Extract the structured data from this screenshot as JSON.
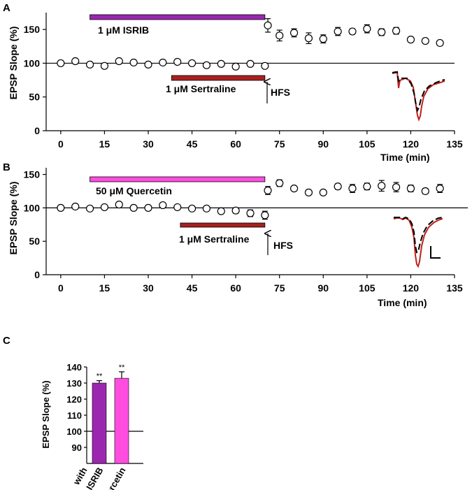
{
  "colors": {
    "isrib": "#9b27b0",
    "quercetin": "#ff4de0",
    "sertraline": "#a8201f",
    "trace_red": "#c0201c",
    "trace_black": "#000000"
  },
  "panels": {
    "A": {
      "letter": "A",
      "bar1_label": "1 μM ISRIB",
      "bar2_label": "1 μM Sertraline",
      "hfs_label": "HFS"
    },
    "B": {
      "letter": "B",
      "bar1_label": "50 μM Quercetin",
      "bar2_label": "1 μM Sertraline",
      "hfs_label": "HFS"
    },
    "C": {
      "letter": "C"
    }
  },
  "chart_data": [
    {
      "type": "scatter",
      "panel": "A",
      "ylabel": "EPSP Slope (%)",
      "xlabel": "Time (min)",
      "xlim": [
        -5,
        135
      ],
      "ylim": [
        0,
        175
      ],
      "xticks": [
        0,
        15,
        30,
        45,
        60,
        75,
        90,
        105,
        120,
        135
      ],
      "yticks": [
        0,
        50,
        100,
        150
      ],
      "baseline": 100,
      "drug_bar_1": {
        "label": "1 μM ISRIB",
        "start": 10,
        "end": 70
      },
      "drug_bar_2": {
        "label": "1 μM Sertraline",
        "start": 38,
        "end": 70
      },
      "hfs_time": 70,
      "x": [
        0,
        5,
        10,
        15,
        20,
        25,
        30,
        35,
        40,
        45,
        50,
        55,
        60,
        65,
        70,
        71,
        75,
        80,
        85,
        90,
        95,
        100,
        105,
        110,
        115,
        120,
        125,
        130
      ],
      "y": [
        100,
        103,
        98,
        96,
        103,
        101,
        98,
        101,
        102,
        100,
        97,
        99,
        95,
        99,
        96,
        156,
        141,
        145,
        137,
        136,
        147,
        147,
        151,
        146,
        148,
        135,
        133,
        130
      ],
      "err": [
        2,
        2,
        2,
        3,
        2,
        2,
        2,
        2,
        2,
        2,
        2,
        2,
        2,
        2,
        3,
        10,
        8,
        6,
        8,
        6,
        6,
        4,
        6,
        5,
        5,
        3,
        3,
        3
      ]
    },
    {
      "type": "scatter",
      "panel": "B",
      "ylabel": "EPSP Slope (%)",
      "xlabel": "Time (min)",
      "xlim": [
        -5,
        135
      ],
      "ylim": [
        0,
        160
      ],
      "xticks": [
        0,
        15,
        30,
        45,
        60,
        75,
        90,
        105,
        120,
        135
      ],
      "yticks": [
        0,
        50,
        100,
        150
      ],
      "baseline": 100,
      "drug_bar_1": {
        "label": "50 μM Quercetin",
        "start": 10,
        "end": 70
      },
      "drug_bar_2": {
        "label": "1 μM Sertraline",
        "start": 41,
        "end": 70
      },
      "hfs_time": 70,
      "x": [
        0,
        5,
        10,
        15,
        20,
        25,
        30,
        35,
        40,
        45,
        50,
        55,
        60,
        65,
        70,
        71,
        75,
        80,
        85,
        90,
        95,
        100,
        105,
        110,
        115,
        120,
        125,
        130
      ],
      "y": [
        100,
        102,
        99,
        101,
        105,
        100,
        100,
        104,
        101,
        99,
        99,
        95,
        96,
        92,
        89,
        126,
        137,
        129,
        123,
        123,
        132,
        129,
        132,
        133,
        131,
        129,
        125,
        129
      ],
      "err": [
        2,
        2,
        2,
        2,
        2,
        2,
        2,
        2,
        2,
        2,
        2,
        2,
        4,
        5,
        6,
        6,
        5,
        3,
        2,
        2,
        4,
        6,
        5,
        8,
        7,
        5,
        4,
        6
      ]
    },
    {
      "type": "bar",
      "panel": "C",
      "ylabel": "EPSP Slope (%)",
      "ylim": [
        80,
        140
      ],
      "yticks": [
        90,
        100,
        110,
        120,
        130,
        140
      ],
      "baseline": 100,
      "categories_prefix": "with",
      "categories": [
        "ISRIB",
        "Quercetin"
      ],
      "values": [
        130,
        133
      ],
      "errors": [
        1.5,
        4
      ],
      "significance": [
        "**",
        "**"
      ]
    }
  ]
}
